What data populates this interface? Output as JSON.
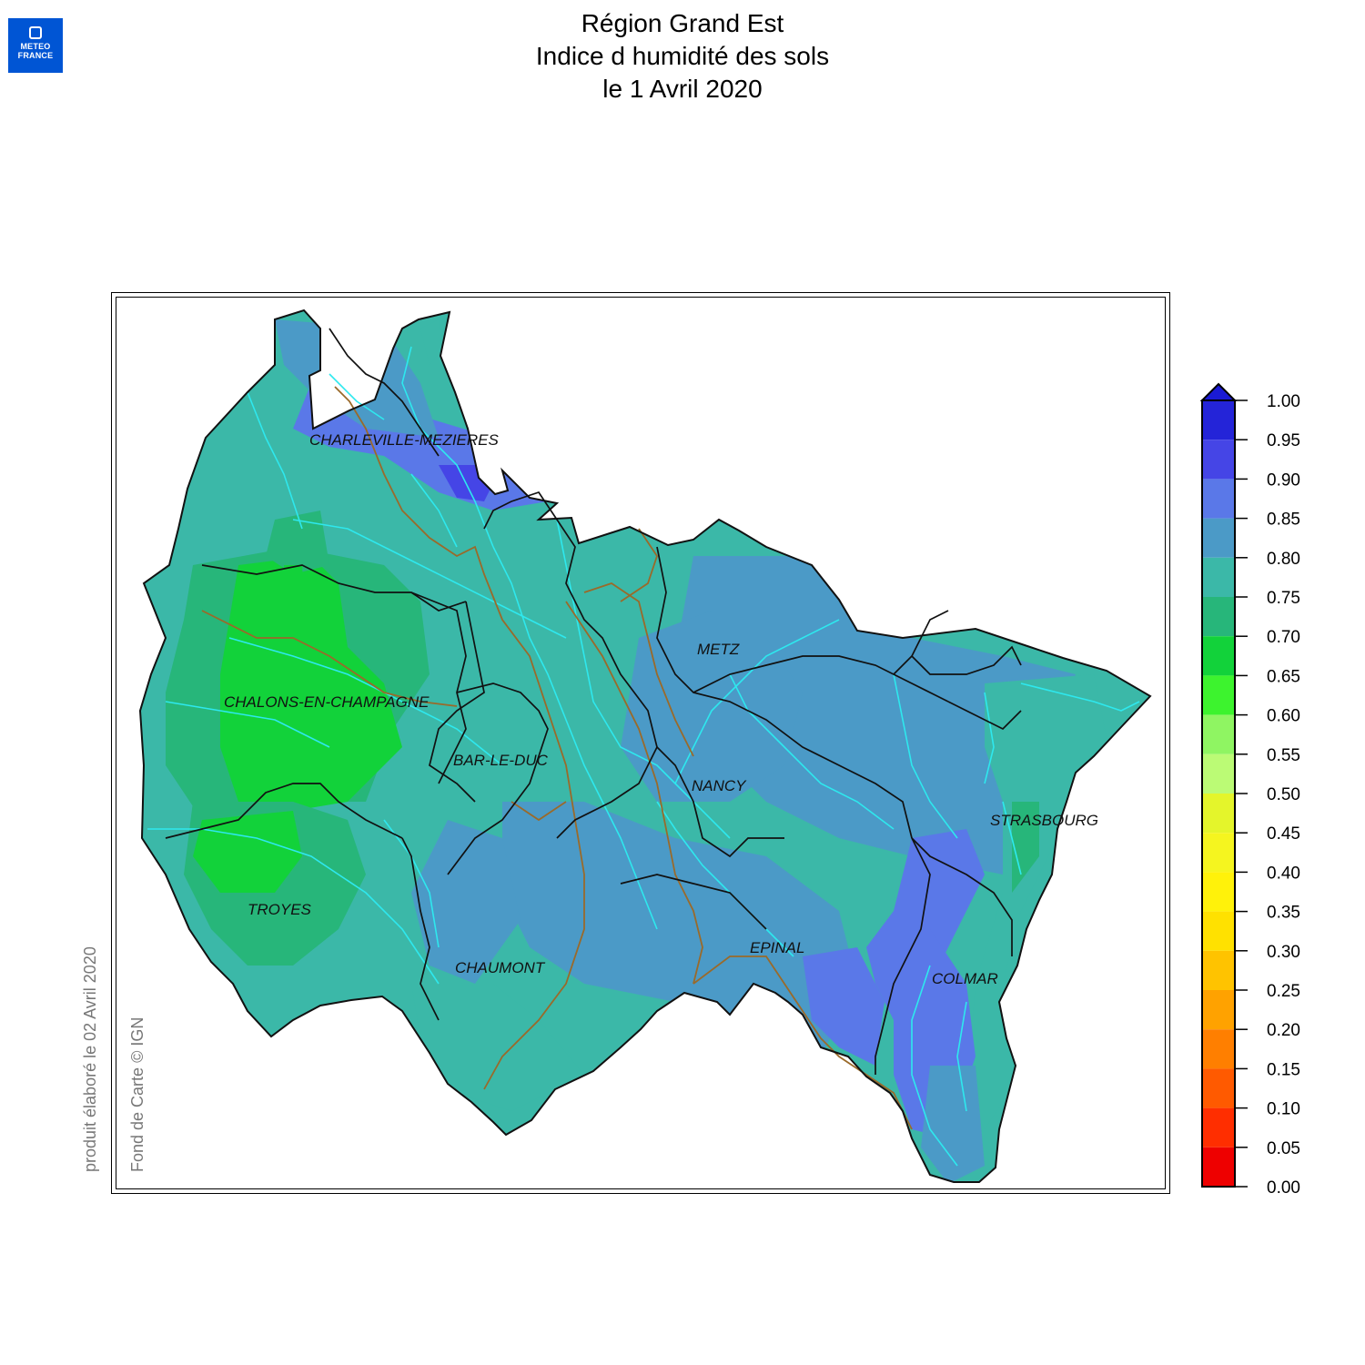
{
  "logo": {
    "line1": "METEO",
    "line2": "FRANCE"
  },
  "title": {
    "line1": "Région Grand Est",
    "line2": "Indice d humidité des sols",
    "line3": "le 1 Avril 2020"
  },
  "side_notes": {
    "produced": "produit élaboré le 02 Avril 2020",
    "basemap": "Fond de Carte © IGN"
  },
  "cities": [
    {
      "name": "CHARLEVILLE-MEZIERES"
    },
    {
      "name": "METZ"
    },
    {
      "name": "CHALONS-EN-CHAMPAGNE"
    },
    {
      "name": "BAR-LE-DUC"
    },
    {
      "name": "NANCY"
    },
    {
      "name": "STRASBOURG"
    },
    {
      "name": "TROYES"
    },
    {
      "name": "EPINAL"
    },
    {
      "name": "CHAUMONT"
    },
    {
      "name": "COLMAR"
    }
  ],
  "legend": {
    "labels": [
      "1.00",
      "0.95",
      "0.90",
      "0.85",
      "0.80",
      "0.75",
      "0.70",
      "0.65",
      "0.60",
      "0.55",
      "0.50",
      "0.45",
      "0.40",
      "0.35",
      "0.30",
      "0.25",
      "0.20",
      "0.15",
      "0.10",
      "0.05",
      "0.00"
    ],
    "colors_top_to_bottom": [
      "#2424d8",
      "#4545e6",
      "#5a78e8",
      "#4b9ac7",
      "#3bb8a8",
      "#27b67a",
      "#12d23a",
      "#3df32e",
      "#8ff562",
      "#bbfb75",
      "#e4f52b",
      "#f5f51f",
      "#fff20a",
      "#ffe100",
      "#ffc300",
      "#ffa200",
      "#ff7f00",
      "#ff5a00",
      "#ff2e00",
      "#ee0000"
    ],
    "overflow_color": "#1a1ad4"
  },
  "colors": {
    "wet_high": "#5a78e8",
    "wet": "#4b9ac7",
    "medium": "#3bb8a8",
    "medium_low": "#27b67a",
    "low": "#12d23a",
    "river": "#2ee8ee",
    "border_brown": "#9a6a2a"
  }
}
